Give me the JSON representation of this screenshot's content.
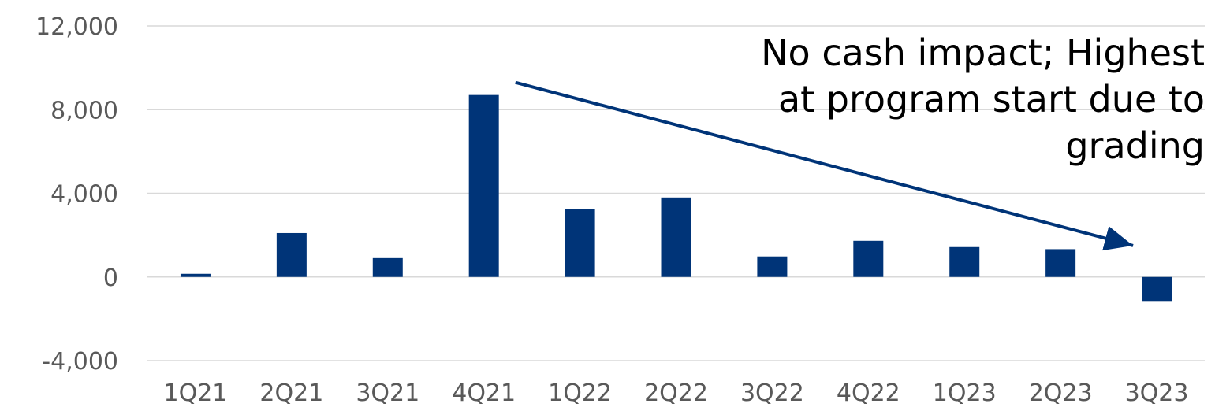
{
  "chart_data": {
    "type": "bar",
    "categories": [
      "1Q21",
      "2Q21",
      "3Q21",
      "4Q21",
      "1Q22",
      "2Q22",
      "3Q22",
      "4Q22",
      "1Q23",
      "2Q23",
      "3Q23"
    ],
    "values": [
      150,
      2100,
      900,
      8700,
      3250,
      3800,
      980,
      1730,
      1430,
      1330,
      -1150
    ],
    "ylim": [
      -4000,
      12000
    ],
    "yticks": [
      -4000,
      0,
      4000,
      8000,
      12000
    ],
    "ytick_labels": [
      "-4,000",
      "0",
      "4,000",
      "8,000",
      "12,000"
    ],
    "grid": true,
    "bar_color": "#003478",
    "gridline_color": "#d9d9d9",
    "annotation": {
      "lines": [
        "No cash impact; Highest",
        "at program start due to",
        "grading"
      ],
      "arrow": {
        "from_category": "4Q21",
        "from_value": 9300,
        "to_category": "3Q23",
        "to_value": 1500
      }
    }
  }
}
